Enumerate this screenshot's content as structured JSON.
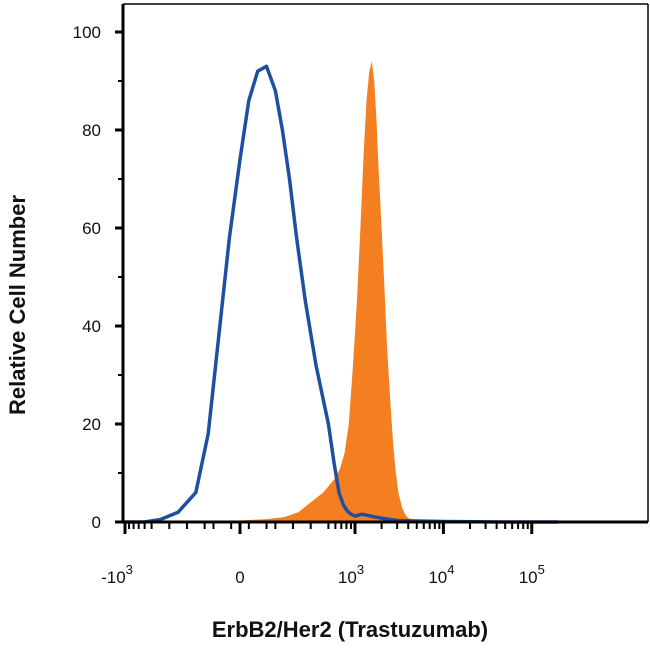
{
  "chart_data": {
    "type": "area",
    "title": "",
    "xlabel": "ErbB2/Her2 (Trastuzumab)",
    "ylabel": "Relative Cell Number",
    "x_scale": "biexponential",
    "ylim": [
      0,
      100
    ],
    "y_ticks": [
      "0",
      "20",
      "40",
      "60",
      "80",
      "100"
    ],
    "x_ticks": [
      {
        "base": "-10",
        "exp": "3"
      },
      {
        "base": "0",
        "exp": ""
      },
      {
        "base": "10",
        "exp": "3"
      },
      {
        "base": "10",
        "exp": "4"
      },
      {
        "base": "10",
        "exp": "5"
      }
    ],
    "grid": false,
    "legend": "none",
    "colors": {
      "filled": "#f47f20",
      "outline": "#1f4fa0",
      "axis": "#000000"
    },
    "series": [
      {
        "style": "filled",
        "x": [
          -300,
          0,
          150,
          250,
          330,
          400,
          470,
          540,
          600,
          680,
          760,
          850,
          950,
          1050,
          1150,
          1250,
          1350,
          1450,
          1550,
          1650,
          1750,
          1850,
          2000,
          2150,
          2300,
          2500,
          2700,
          2900,
          3100,
          3400,
          3700,
          4000,
          5000,
          7000,
          10000,
          50000,
          200000
        ],
        "y": [
          0,
          0.3,
          0.6,
          1,
          2,
          4,
          6,
          8,
          9,
          11,
          14,
          20,
          32,
          45,
          60,
          75,
          86,
          92,
          94,
          90,
          82,
          72,
          60,
          48,
          36,
          25,
          16,
          10,
          6,
          3,
          1.5,
          0.8,
          0.3,
          0.1,
          0,
          0,
          0
        ]
      },
      {
        "style": "outline",
        "x": [
          -1000,
          -600,
          -450,
          -350,
          -250,
          -180,
          -120,
          -60,
          0,
          50,
          100,
          150,
          200,
          240,
          280,
          320,
          370,
          430,
          500,
          580,
          660,
          740,
          820,
          900,
          1000,
          1200,
          1500,
          2000,
          2500,
          3000,
          5000,
          10000,
          50000,
          200000
        ],
        "y": [
          0,
          0,
          0.5,
          2,
          6,
          18,
          38,
          58,
          74,
          86,
          92,
          93,
          88,
          80,
          70,
          58,
          45,
          32,
          20,
          12,
          6,
          3.5,
          2.2,
          1.6,
          1.2,
          1.6,
          1.2,
          0.8,
          0.5,
          0.3,
          0.2,
          0.1,
          0,
          0
        ]
      }
    ]
  }
}
